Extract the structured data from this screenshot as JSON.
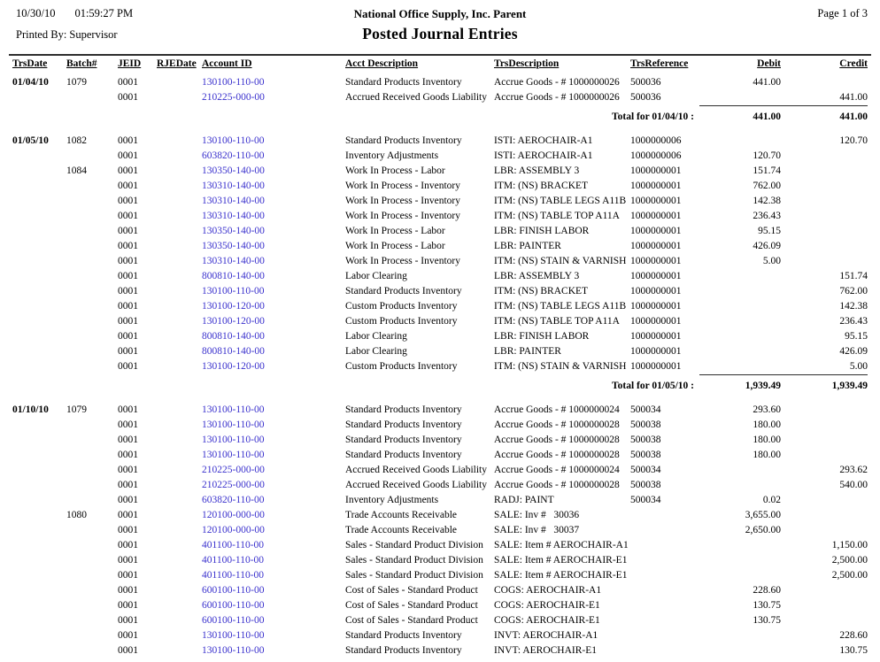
{
  "report": {
    "printed_date": "10/30/10",
    "printed_time": "01:59:27 PM",
    "printed_by": "Printed By: Supervisor",
    "company": "National Office Supply, Inc. Parent",
    "title": "Posted Journal Entries",
    "page_info": "Page 1 of 3"
  },
  "colors": {
    "link": "#3a31cd",
    "rule": "#2e2e2e"
  },
  "table": {
    "headers": [
      "TrsDate",
      "Batch#",
      "JEID",
      "RJEDate",
      "Account ID",
      "Acct Description",
      "TrsDescription",
      "TrsReference",
      "Debit",
      "Credit"
    ],
    "sections": [
      {
        "rows": [
          {
            "date": "01/04/10",
            "batch": "1079",
            "jeid": "0001",
            "rjedate": "",
            "account": "130100-110-00",
            "acct_desc": "Standard Products Inventory",
            "trs_desc": "Accrue Goods - # 1000000026",
            "trs_ref": "500036",
            "debit": "441.00",
            "credit": ""
          },
          {
            "date": "",
            "batch": "",
            "jeid": "0001",
            "rjedate": "",
            "account": "210225-000-00",
            "acct_desc": "Accrued Received Goods Liability",
            "trs_desc": "Accrue Goods - # 1000000026",
            "trs_ref": "500036",
            "debit": "",
            "credit": "441.00"
          }
        ],
        "total": {
          "label": "Total for 01/04/10 :",
          "debit": "441.00",
          "credit": "441.00"
        }
      },
      {
        "rows": [
          {
            "date": "01/05/10",
            "batch": "1082",
            "jeid": "0001",
            "rjedate": "",
            "account": "130100-110-00",
            "acct_desc": "Standard Products Inventory",
            "trs_desc": "ISTI: AEROCHAIR-A1",
            "trs_ref": "1000000006",
            "debit": "",
            "credit": "120.70"
          },
          {
            "date": "",
            "batch": "",
            "jeid": "0001",
            "rjedate": "",
            "account": "603820-110-00",
            "acct_desc": "Inventory Adjustments",
            "trs_desc": "ISTI: AEROCHAIR-A1",
            "trs_ref": "1000000006",
            "debit": "120.70",
            "credit": ""
          },
          {
            "date": "",
            "batch": "1084",
            "jeid": "0001",
            "rjedate": "",
            "account": "130350-140-00",
            "acct_desc": "Work In Process - Labor",
            "trs_desc": "LBR: ASSEMBLY 3",
            "trs_ref": "1000000001",
            "debit": "151.74",
            "credit": ""
          },
          {
            "date": "",
            "batch": "",
            "jeid": "0001",
            "rjedate": "",
            "account": "130310-140-00",
            "acct_desc": "Work In Process - Inventory",
            "trs_desc": "ITM: (NS) BRACKET",
            "trs_ref": "1000000001",
            "debit": "762.00",
            "credit": ""
          },
          {
            "date": "",
            "batch": "",
            "jeid": "0001",
            "rjedate": "",
            "account": "130310-140-00",
            "acct_desc": "Work In Process - Inventory",
            "trs_desc": "ITM: (NS) TABLE LEGS A11B",
            "trs_ref": "1000000001",
            "debit": "142.38",
            "credit": ""
          },
          {
            "date": "",
            "batch": "",
            "jeid": "0001",
            "rjedate": "",
            "account": "130310-140-00",
            "acct_desc": "Work In Process - Inventory",
            "trs_desc": "ITM: (NS) TABLE TOP A11A",
            "trs_ref": "1000000001",
            "debit": "236.43",
            "credit": ""
          },
          {
            "date": "",
            "batch": "",
            "jeid": "0001",
            "rjedate": "",
            "account": "130350-140-00",
            "acct_desc": "Work In Process - Labor",
            "trs_desc": "LBR: FINISH LABOR",
            "trs_ref": "1000000001",
            "debit": "95.15",
            "credit": ""
          },
          {
            "date": "",
            "batch": "",
            "jeid": "0001",
            "rjedate": "",
            "account": "130350-140-00",
            "acct_desc": "Work In Process - Labor",
            "trs_desc": "LBR: PAINTER",
            "trs_ref": "1000000001",
            "debit": "426.09",
            "credit": ""
          },
          {
            "date": "",
            "batch": "",
            "jeid": "0001",
            "rjedate": "",
            "account": "130310-140-00",
            "acct_desc": "Work In Process - Inventory",
            "trs_desc": "ITM: (NS) STAIN & VARNISH",
            "trs_ref": "1000000001",
            "debit": "5.00",
            "credit": ""
          },
          {
            "date": "",
            "batch": "",
            "jeid": "0001",
            "rjedate": "",
            "account": "800810-140-00",
            "acct_desc": "Labor Clearing",
            "trs_desc": "LBR: ASSEMBLY 3",
            "trs_ref": "1000000001",
            "debit": "",
            "credit": "151.74"
          },
          {
            "date": "",
            "batch": "",
            "jeid": "0001",
            "rjedate": "",
            "account": "130100-110-00",
            "acct_desc": "Standard Products Inventory",
            "trs_desc": "ITM: (NS) BRACKET",
            "trs_ref": "1000000001",
            "debit": "",
            "credit": "762.00"
          },
          {
            "date": "",
            "batch": "",
            "jeid": "0001",
            "rjedate": "",
            "account": "130100-120-00",
            "acct_desc": "Custom Products Inventory",
            "trs_desc": "ITM: (NS) TABLE LEGS A11B",
            "trs_ref": "1000000001",
            "debit": "",
            "credit": "142.38"
          },
          {
            "date": "",
            "batch": "",
            "jeid": "0001",
            "rjedate": "",
            "account": "130100-120-00",
            "acct_desc": "Custom Products Inventory",
            "trs_desc": "ITM: (NS) TABLE TOP A11A",
            "trs_ref": "1000000001",
            "debit": "",
            "credit": "236.43"
          },
          {
            "date": "",
            "batch": "",
            "jeid": "0001",
            "rjedate": "",
            "account": "800810-140-00",
            "acct_desc": "Labor Clearing",
            "trs_desc": "LBR: FINISH LABOR",
            "trs_ref": "1000000001",
            "debit": "",
            "credit": "95.15"
          },
          {
            "date": "",
            "batch": "",
            "jeid": "0001",
            "rjedate": "",
            "account": "800810-140-00",
            "acct_desc": "Labor Clearing",
            "trs_desc": "LBR: PAINTER",
            "trs_ref": "1000000001",
            "debit": "",
            "credit": "426.09"
          },
          {
            "date": "",
            "batch": "",
            "jeid": "0001",
            "rjedate": "",
            "account": "130100-120-00",
            "acct_desc": "Custom Products Inventory",
            "trs_desc": "ITM: (NS) STAIN & VARNISH",
            "trs_ref": "1000000001",
            "debit": "",
            "credit": "5.00"
          }
        ],
        "total": {
          "label": "Total for 01/05/10 :",
          "debit": "1,939.49",
          "credit": "1,939.49"
        }
      },
      {
        "rows": [
          {
            "date": "01/10/10",
            "batch": "1079",
            "jeid": "0001",
            "rjedate": "",
            "account": "130100-110-00",
            "acct_desc": "Standard Products Inventory",
            "trs_desc": "Accrue Goods - # 1000000024",
            "trs_ref": "500034",
            "debit": "293.60",
            "credit": ""
          },
          {
            "date": "",
            "batch": "",
            "jeid": "0001",
            "rjedate": "",
            "account": "130100-110-00",
            "acct_desc": "Standard Products Inventory",
            "trs_desc": "Accrue Goods - # 1000000028",
            "trs_ref": "500038",
            "debit": "180.00",
            "credit": ""
          },
          {
            "date": "",
            "batch": "",
            "jeid": "0001",
            "rjedate": "",
            "account": "130100-110-00",
            "acct_desc": "Standard Products Inventory",
            "trs_desc": "Accrue Goods - # 1000000028",
            "trs_ref": "500038",
            "debit": "180.00",
            "credit": ""
          },
          {
            "date": "",
            "batch": "",
            "jeid": "0001",
            "rjedate": "",
            "account": "130100-110-00",
            "acct_desc": "Standard Products Inventory",
            "trs_desc": "Accrue Goods - # 1000000028",
            "trs_ref": "500038",
            "debit": "180.00",
            "credit": ""
          },
          {
            "date": "",
            "batch": "",
            "jeid": "0001",
            "rjedate": "",
            "account": "210225-000-00",
            "acct_desc": "Accrued Received Goods Liability",
            "trs_desc": "Accrue Goods - # 1000000024",
            "trs_ref": "500034",
            "debit": "",
            "credit": "293.62"
          },
          {
            "date": "",
            "batch": "",
            "jeid": "0001",
            "rjedate": "",
            "account": "210225-000-00",
            "acct_desc": "Accrued Received Goods Liability",
            "trs_desc": "Accrue Goods - # 1000000028",
            "trs_ref": "500038",
            "debit": "",
            "credit": "540.00"
          },
          {
            "date": "",
            "batch": "",
            "jeid": "0001",
            "rjedate": "",
            "account": "603820-110-00",
            "acct_desc": "Inventory Adjustments",
            "trs_desc": "RADJ: PAINT",
            "trs_ref": "500034",
            "debit": "0.02",
            "credit": ""
          },
          {
            "date": "",
            "batch": "1080",
            "jeid": "0001",
            "rjedate": "",
            "account": "120100-000-00",
            "acct_desc": "Trade Accounts Receivable",
            "trs_desc": "SALE: Inv #   30036",
            "trs_ref": "",
            "debit": "3,655.00",
            "credit": ""
          },
          {
            "date": "",
            "batch": "",
            "jeid": "0001",
            "rjedate": "",
            "account": "120100-000-00",
            "acct_desc": "Trade Accounts Receivable",
            "trs_desc": "SALE: Inv #   30037",
            "trs_ref": "",
            "debit": "2,650.00",
            "credit": ""
          },
          {
            "date": "",
            "batch": "",
            "jeid": "0001",
            "rjedate": "",
            "account": "401100-110-00",
            "acct_desc": "Sales - Standard Product Division",
            "trs_desc": "SALE: Item # AEROCHAIR-A1",
            "trs_ref": "",
            "debit": "",
            "credit": "1,150.00"
          },
          {
            "date": "",
            "batch": "",
            "jeid": "0001",
            "rjedate": "",
            "account": "401100-110-00",
            "acct_desc": "Sales - Standard Product Division",
            "trs_desc": "SALE: Item # AEROCHAIR-E1",
            "trs_ref": "",
            "debit": "",
            "credit": "2,500.00"
          },
          {
            "date": "",
            "batch": "",
            "jeid": "0001",
            "rjedate": "",
            "account": "401100-110-00",
            "acct_desc": "Sales - Standard Product Division",
            "trs_desc": "SALE: Item # AEROCHAIR-E1",
            "trs_ref": "",
            "debit": "",
            "credit": "2,500.00"
          },
          {
            "date": "",
            "batch": "",
            "jeid": "0001",
            "rjedate": "",
            "account": "600100-110-00",
            "acct_desc": "Cost of Sales - Standard Product",
            "trs_desc": "COGS: AEROCHAIR-A1",
            "trs_ref": "",
            "debit": "228.60",
            "credit": ""
          },
          {
            "date": "",
            "batch": "",
            "jeid": "0001",
            "rjedate": "",
            "account": "600100-110-00",
            "acct_desc": "Cost of Sales - Standard Product",
            "trs_desc": "COGS: AEROCHAIR-E1",
            "trs_ref": "",
            "debit": "130.75",
            "credit": ""
          },
          {
            "date": "",
            "batch": "",
            "jeid": "0001",
            "rjedate": "",
            "account": "600100-110-00",
            "acct_desc": "Cost of Sales - Standard Product",
            "trs_desc": "COGS: AEROCHAIR-E1",
            "trs_ref": "",
            "debit": "130.75",
            "credit": ""
          },
          {
            "date": "",
            "batch": "",
            "jeid": "0001",
            "rjedate": "",
            "account": "130100-110-00",
            "acct_desc": "Standard Products Inventory",
            "trs_desc": "INVT: AEROCHAIR-A1",
            "trs_ref": "",
            "debit": "",
            "credit": "228.60"
          },
          {
            "date": "",
            "batch": "",
            "jeid": "0001",
            "rjedate": "",
            "account": "130100-110-00",
            "acct_desc": "Standard Products Inventory",
            "trs_desc": "INVT: AEROCHAIR-E1",
            "trs_ref": "",
            "debit": "",
            "credit": "130.75"
          }
        ],
        "total": null
      }
    ]
  }
}
